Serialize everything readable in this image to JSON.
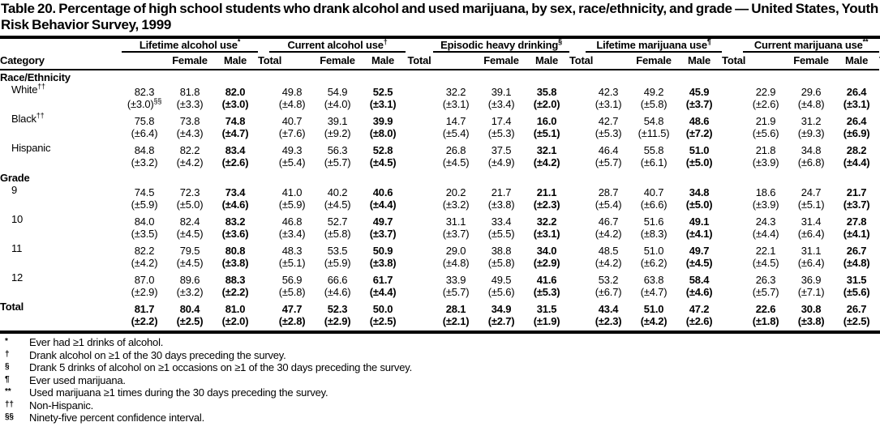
{
  "title": "Table 20. Percentage of high school students who drank alcohol and used marijuana, by sex, race/ethnicity, and grade — United States, Youth Risk Behavior Survey, 1999",
  "table": {
    "category_header": "Category",
    "col_subheaders": [
      "Female",
      "Male",
      "Total"
    ],
    "groups": [
      {
        "label": "Lifetime alcohol use",
        "sup": "*"
      },
      {
        "label": "Current alcohol use",
        "sup": "†"
      },
      {
        "label": "Episodic heavy drinking",
        "sup": "§"
      },
      {
        "label": "Lifetime marijuana use",
        "sup": "¶"
      },
      {
        "label": "Current marijuana use",
        "sup": "**"
      }
    ],
    "rows": [
      {
        "type": "section",
        "label": "Race/Ethnicity"
      },
      {
        "type": "data",
        "label": "White",
        "label_sup": "††",
        "indent": true,
        "bold_all": false,
        "values": [
          "82.3",
          "81.8",
          "82.0",
          "49.8",
          "54.9",
          "52.5",
          "32.2",
          "39.1",
          "35.8",
          "42.3",
          "49.2",
          "45.9",
          "22.9",
          "29.6",
          "26.4"
        ],
        "ci": [
          "(±3.0)",
          "(±3.3)",
          "(±3.0)",
          "(±4.8)",
          "(±4.0)",
          "(±3.1)",
          "(±3.1)",
          "(±3.4)",
          "(±2.0)",
          "(±3.1)",
          "(±5.8)",
          "(±3.7)",
          "(±2.6)",
          "(±4.8)",
          "(±3.1)"
        ],
        "ci0_sup": "§§"
      },
      {
        "type": "data",
        "label": "Black",
        "label_sup": "††",
        "indent": true,
        "bold_all": false,
        "values": [
          "75.8",
          "73.8",
          "74.8",
          "40.7",
          "39.1",
          "39.9",
          "14.7",
          "17.4",
          "16.0",
          "42.7",
          "54.8",
          "48.6",
          "21.9",
          "31.2",
          "26.4"
        ],
        "ci": [
          "(±6.4)",
          "(±4.3)",
          "(±4.7)",
          "(±7.6)",
          "(±9.2)",
          "(±8.0)",
          "(±5.4)",
          "(±5.3)",
          "(±5.1)",
          "(±5.3)",
          "(±11.5)",
          "(±7.2)",
          "(±5.6)",
          "(±9.3)",
          "(±6.9)"
        ]
      },
      {
        "type": "data",
        "label": "Hispanic",
        "label_sup": "",
        "indent": true,
        "bold_all": false,
        "values": [
          "84.8",
          "82.2",
          "83.4",
          "49.3",
          "56.3",
          "52.8",
          "26.8",
          "37.5",
          "32.1",
          "46.4",
          "55.8",
          "51.0",
          "21.8",
          "34.8",
          "28.2"
        ],
        "ci": [
          "(±3.2)",
          "(±4.2)",
          "(±2.6)",
          "(±5.4)",
          "(±5.7)",
          "(±4.5)",
          "(±4.5)",
          "(±4.9)",
          "(±4.2)",
          "(±5.7)",
          "(±6.1)",
          "(±5.0)",
          "(±3.9)",
          "(±6.8)",
          "(±4.4)"
        ]
      },
      {
        "type": "section",
        "label": "Grade"
      },
      {
        "type": "data",
        "label": "9",
        "label_sup": "",
        "indent": true,
        "bold_all": false,
        "values": [
          "74.5",
          "72.3",
          "73.4",
          "41.0",
          "40.2",
          "40.6",
          "20.2",
          "21.7",
          "21.1",
          "28.7",
          "40.7",
          "34.8",
          "18.6",
          "24.7",
          "21.7"
        ],
        "ci": [
          "(±5.9)",
          "(±5.0)",
          "(±4.6)",
          "(±5.9)",
          "(±4.5)",
          "(±4.4)",
          "(±3.2)",
          "(±3.8)",
          "(±2.3)",
          "(±5.4)",
          "(±6.6)",
          "(±5.0)",
          "(±3.9)",
          "(±5.1)",
          "(±3.7)"
        ]
      },
      {
        "type": "data",
        "label": "10",
        "label_sup": "",
        "indent": true,
        "bold_all": false,
        "values": [
          "84.0",
          "82.4",
          "83.2",
          "46.8",
          "52.7",
          "49.7",
          "31.1",
          "33.4",
          "32.2",
          "46.7",
          "51.6",
          "49.1",
          "24.3",
          "31.4",
          "27.8"
        ],
        "ci": [
          "(±3.5)",
          "(±4.5)",
          "(±3.6)",
          "(±3.4)",
          "(±5.8)",
          "(±3.7)",
          "(±3.7)",
          "(±5.5)",
          "(±3.1)",
          "(±4.2)",
          "(±8.3)",
          "(±4.1)",
          "(±4.4)",
          "(±6.4)",
          "(±4.1)"
        ]
      },
      {
        "type": "data",
        "label": "11",
        "label_sup": "",
        "indent": true,
        "bold_all": false,
        "values": [
          "82.2",
          "79.5",
          "80.8",
          "48.3",
          "53.5",
          "50.9",
          "29.0",
          "38.8",
          "34.0",
          "48.5",
          "51.0",
          "49.7",
          "22.1",
          "31.1",
          "26.7"
        ],
        "ci": [
          "(±4.2)",
          "(±4.5)",
          "(±3.8)",
          "(±5.1)",
          "(±5.9)",
          "(±3.8)",
          "(±4.8)",
          "(±5.8)",
          "(±2.9)",
          "(±4.2)",
          "(±6.2)",
          "(±4.5)",
          "(±4.5)",
          "(±6.4)",
          "(±4.8)"
        ]
      },
      {
        "type": "data",
        "label": "12",
        "label_sup": "",
        "indent": true,
        "bold_all": false,
        "values": [
          "87.0",
          "89.6",
          "88.3",
          "56.9",
          "66.6",
          "61.7",
          "33.9",
          "49.5",
          "41.6",
          "53.2",
          "63.8",
          "58.4",
          "26.3",
          "36.9",
          "31.5"
        ],
        "ci": [
          "(±2.9)",
          "(±3.2)",
          "(±2.2)",
          "(±5.8)",
          "(±4.6)",
          "(±4.4)",
          "(±5.7)",
          "(±5.6)",
          "(±5.3)",
          "(±6.7)",
          "(±4.7)",
          "(±4.6)",
          "(±5.7)",
          "(±7.1)",
          "(±5.6)"
        ]
      },
      {
        "type": "data",
        "label": "Total",
        "label_sup": "",
        "indent": false,
        "bold_all": true,
        "values": [
          "81.7",
          "80.4",
          "81.0",
          "47.7",
          "52.3",
          "50.0",
          "28.1",
          "34.9",
          "31.5",
          "43.4",
          "51.0",
          "47.2",
          "22.6",
          "30.8",
          "26.7"
        ],
        "ci": [
          "(±2.2)",
          "(±2.5)",
          "(±2.0)",
          "(±2.8)",
          "(±2.9)",
          "(±2.5)",
          "(±2.1)",
          "(±2.7)",
          "(±1.9)",
          "(±2.3)",
          "(±4.2)",
          "(±2.6)",
          "(±1.8)",
          "(±3.8)",
          "(±2.5)"
        ]
      }
    ]
  },
  "footnotes": [
    {
      "sup": "*",
      "text": "Ever had ≥1 drinks of alcohol."
    },
    {
      "sup": "†",
      "text": "Drank alcohol on ≥1 of the 30 days preceding the survey."
    },
    {
      "sup": "§",
      "text": "Drank 5 drinks of alcohol on ≥1 occasions on ≥1 of the 30 days preceding the survey."
    },
    {
      "sup": "¶",
      "text": "Ever used marijuana."
    },
    {
      "sup": "**",
      "text": "Used marijuana ≥1 times during the 30 days preceding the survey."
    },
    {
      "sup": "††",
      "text": "Non-Hispanic."
    },
    {
      "sup": "§§",
      "text": "Ninety-five percent confidence interval."
    }
  ]
}
